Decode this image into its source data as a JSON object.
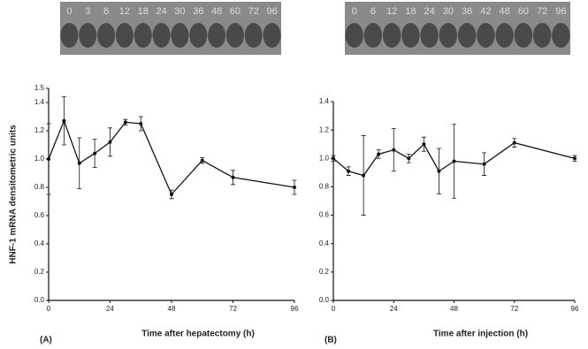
{
  "chart_data": [
    {
      "type": "line",
      "panel_label": "(A)",
      "lanes": [
        "0",
        "3",
        "6",
        "12",
        "18",
        "24",
        "30",
        "36",
        "48",
        "60",
        "72",
        "96"
      ],
      "xlabel": "Time after hepatectomy (h)",
      "ylabel": "HNF-1 mRNA densitometric units",
      "x": [
        0,
        6,
        12,
        18,
        24,
        30,
        36,
        48,
        60,
        72,
        96
      ],
      "values": [
        1.0,
        1.27,
        0.97,
        1.04,
        1.12,
        1.26,
        1.25,
        0.75,
        0.99,
        0.87,
        0.8
      ],
      "errors": [
        0.25,
        0.17,
        0.18,
        0.1,
        0.1,
        0.02,
        0.05,
        0.03,
        0.02,
        0.05,
        0.05
      ],
      "color": "#111111",
      "xlim": [
        0,
        96
      ],
      "xticks": [
        0,
        24,
        48,
        72,
        96
      ],
      "ylim": [
        0,
        1.5
      ],
      "yticks": [
        {
          "value": 0,
          "label": "0.0"
        },
        0.2,
        0.4,
        0.6,
        0.8,
        {
          "value": 1,
          "label": "1.0"
        },
        1.2,
        1.4,
        1.5
      ]
    },
    {
      "type": "line",
      "panel_label": "(B)",
      "lanes": [
        "0",
        "6",
        "12",
        "18",
        "24",
        "30",
        "36",
        "42",
        "48",
        "60",
        "72",
        "96"
      ],
      "xlabel": "Time after injection (h)",
      "x": [
        0,
        6,
        12,
        18,
        24,
        30,
        36,
        42,
        48,
        60,
        72,
        96
      ],
      "values": [
        1.0,
        0.91,
        0.88,
        1.03,
        1.06,
        1.0,
        1.1,
        0.91,
        0.98,
        0.96,
        1.11,
        1.0
      ],
      "errors": [
        0.02,
        0.03,
        0.28,
        0.03,
        0.15,
        0.03,
        0.05,
        0.16,
        0.26,
        0.08,
        0.03,
        0.02
      ],
      "color": "#111111",
      "xlim": [
        0,
        96
      ],
      "xticks": [
        0,
        24,
        48,
        72,
        96
      ],
      "ylim": [
        0,
        1.4
      ],
      "yticks": [
        {
          "value": 0,
          "label": "0.0"
        },
        0.2,
        0.4,
        0.6,
        0.8,
        {
          "value": 1,
          "label": "1.0"
        },
        1.2,
        1.4
      ]
    }
  ]
}
